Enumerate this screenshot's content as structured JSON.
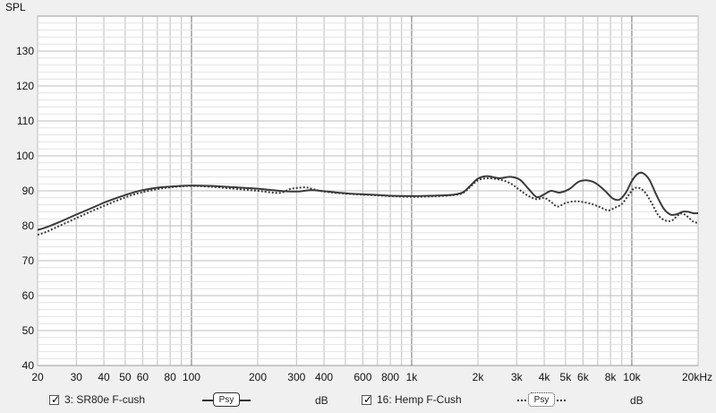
{
  "chart_data": {
    "type": "line",
    "ylabel": "SPL",
    "xscale": "log",
    "xlim": [
      20,
      20000
    ],
    "ylim": [
      40,
      140
    ],
    "y_ticks": [
      40,
      50,
      60,
      70,
      80,
      90,
      100,
      110,
      120,
      130
    ],
    "x_ticks": [
      {
        "v": 20,
        "label": "20"
      },
      {
        "v": 30,
        "label": "30"
      },
      {
        "v": 40,
        "label": "40"
      },
      {
        "v": 50,
        "label": "50"
      },
      {
        "v": 60,
        "label": "60"
      },
      {
        "v": 80,
        "label": "80"
      },
      {
        "v": 100,
        "label": "100"
      },
      {
        "v": 200,
        "label": "200"
      },
      {
        "v": 300,
        "label": "300"
      },
      {
        "v": 400,
        "label": "400"
      },
      {
        "v": 600,
        "label": "600"
      },
      {
        "v": 800,
        "label": "800"
      },
      {
        "v": 1000,
        "label": "1k"
      },
      {
        "v": 2000,
        "label": "2k"
      },
      {
        "v": 3000,
        "label": "3k"
      },
      {
        "v": 4000,
        "label": "4k"
      },
      {
        "v": 5000,
        "label": "5k"
      },
      {
        "v": 6000,
        "label": "6k"
      },
      {
        "v": 8000,
        "label": "8k"
      },
      {
        "v": 10000,
        "label": "10k"
      },
      {
        "v": 20000,
        "label": "20kHz"
      }
    ],
    "grid": true,
    "series": [
      {
        "name": "3: SR80e F-cush",
        "color": "#3a3a3a",
        "style": "solid",
        "points": [
          [
            20,
            78.8
          ],
          [
            22,
            79.6
          ],
          [
            25,
            81
          ],
          [
            30,
            83.2
          ],
          [
            35,
            85
          ],
          [
            40,
            86.6
          ],
          [
            45,
            87.8
          ],
          [
            50,
            88.8
          ],
          [
            55,
            89.6
          ],
          [
            60,
            90.2
          ],
          [
            70,
            90.9
          ],
          [
            80,
            91.2
          ],
          [
            90,
            91.4
          ],
          [
            100,
            91.5
          ],
          [
            120,
            91.4
          ],
          [
            150,
            91.1
          ],
          [
            200,
            90.6
          ],
          [
            250,
            90
          ],
          [
            300,
            89.8
          ],
          [
            350,
            90.2
          ],
          [
            400,
            89.9
          ],
          [
            500,
            89.3
          ],
          [
            600,
            89
          ],
          [
            700,
            88.8
          ],
          [
            800,
            88.6
          ],
          [
            1000,
            88.5
          ],
          [
            1200,
            88.6
          ],
          [
            1500,
            88.8
          ],
          [
            1700,
            89.5
          ],
          [
            1850,
            91.5
          ],
          [
            2000,
            93.5
          ],
          [
            2200,
            94.2
          ],
          [
            2500,
            93.6
          ],
          [
            2800,
            94
          ],
          [
            3100,
            93.2
          ],
          [
            3400,
            90.5
          ],
          [
            3700,
            88.2
          ],
          [
            4000,
            89
          ],
          [
            4300,
            90
          ],
          [
            4700,
            89.5
          ],
          [
            5200,
            90.5
          ],
          [
            5700,
            92.5
          ],
          [
            6200,
            93
          ],
          [
            6800,
            92.3
          ],
          [
            7500,
            90.2
          ],
          [
            8200,
            87.8
          ],
          [
            8800,
            87.5
          ],
          [
            9400,
            89.5
          ],
          [
            10000,
            92.8
          ],
          [
            10600,
            94.8
          ],
          [
            11200,
            95.1
          ],
          [
            12000,
            93.2
          ],
          [
            13000,
            88.5
          ],
          [
            14000,
            84.8
          ],
          [
            15000,
            83.2
          ],
          [
            16000,
            83.3
          ],
          [
            17000,
            84
          ],
          [
            18000,
            84
          ],
          [
            19000,
            83.6
          ],
          [
            20000,
            83.6
          ]
        ]
      },
      {
        "name": "16: Hemp F-Cush",
        "color": "#3a3a3a",
        "style": "dotted",
        "points": [
          [
            20,
            77.4
          ],
          [
            22,
            78.3
          ],
          [
            25,
            79.9
          ],
          [
            30,
            82.2
          ],
          [
            35,
            84.1
          ],
          [
            40,
            85.7
          ],
          [
            45,
            87
          ],
          [
            50,
            88.1
          ],
          [
            55,
            89
          ],
          [
            60,
            89.6
          ],
          [
            70,
            90.5
          ],
          [
            80,
            91
          ],
          [
            90,
            91.3
          ],
          [
            100,
            91.4
          ],
          [
            120,
            91.2
          ],
          [
            150,
            90.7
          ],
          [
            200,
            90
          ],
          [
            250,
            89.4
          ],
          [
            280,
            90.5
          ],
          [
            300,
            90.8
          ],
          [
            330,
            91
          ],
          [
            350,
            90.6
          ],
          [
            400,
            89.8
          ],
          [
            500,
            89.2
          ],
          [
            600,
            88.9
          ],
          [
            700,
            88.7
          ],
          [
            800,
            88.5
          ],
          [
            1000,
            88.3
          ],
          [
            1200,
            88.4
          ],
          [
            1500,
            88.7
          ],
          [
            1700,
            89.3
          ],
          [
            1850,
            91.2
          ],
          [
            2000,
            93
          ],
          [
            2200,
            93.6
          ],
          [
            2500,
            93.2
          ],
          [
            2800,
            92.2
          ],
          [
            3100,
            90.2
          ],
          [
            3400,
            88.5
          ],
          [
            3700,
            87.6
          ],
          [
            4000,
            88
          ],
          [
            4300,
            86.8
          ],
          [
            4600,
            85.5
          ],
          [
            5000,
            86.5
          ],
          [
            5500,
            87
          ],
          [
            6000,
            86.8
          ],
          [
            6600,
            86.2
          ],
          [
            7200,
            85.3
          ],
          [
            7800,
            84.4
          ],
          [
            8400,
            85.2
          ],
          [
            9000,
            86.2
          ],
          [
            9600,
            88.5
          ],
          [
            10200,
            90.6
          ],
          [
            10800,
            90.8
          ],
          [
            11500,
            89.5
          ],
          [
            12300,
            86.5
          ],
          [
            13200,
            83
          ],
          [
            14200,
            81.5
          ],
          [
            15200,
            81.5
          ],
          [
            16200,
            83
          ],
          [
            17000,
            83.5
          ],
          [
            18000,
            82.5
          ],
          [
            19000,
            81.2
          ],
          [
            20000,
            80.8
          ]
        ]
      }
    ]
  },
  "legend": [
    {
      "checked": "✓",
      "label": "3: SR80e F-cush",
      "button": "Psy",
      "unit": "dB"
    },
    {
      "checked": "✓",
      "label": "16: Hemp F-Cush",
      "button": "Psy",
      "unit": "dB"
    }
  ]
}
